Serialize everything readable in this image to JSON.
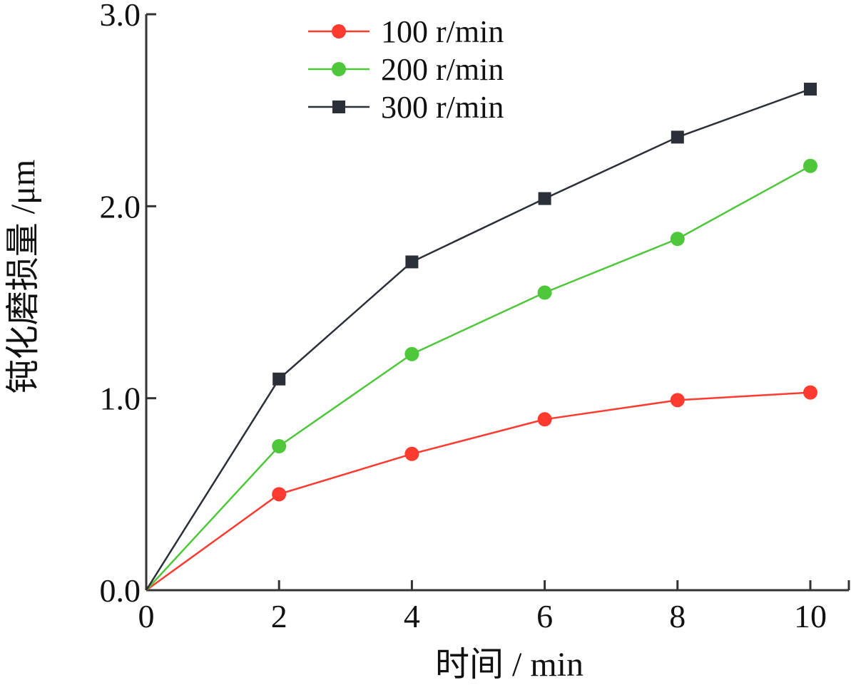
{
  "chart_data": {
    "type": "line",
    "xlabel": "时间 / min",
    "ylabel": "钝化磨损量 /μm",
    "x": [
      0,
      2,
      4,
      6,
      8,
      10
    ],
    "xlim": [
      0,
      10
    ],
    "ylim": [
      0,
      3.0
    ],
    "x_ticks": [
      "0",
      "2",
      "4",
      "6",
      "8",
      "10"
    ],
    "y_ticks": [
      "0.0",
      "1.0",
      "2.0",
      "3.0"
    ],
    "grid": false,
    "legend_position": "top-center",
    "series": [
      {
        "name": "100 r/min",
        "marker": "circle",
        "color": "#ff3b30",
        "values": [
          0,
          0.5,
          0.71,
          0.89,
          0.99,
          1.03
        ]
      },
      {
        "name": "200 r/min",
        "marker": "circle",
        "color": "#4ec83a",
        "values": [
          0,
          0.75,
          1.23,
          1.55,
          1.83,
          2.21
        ]
      },
      {
        "name": "300 r/min",
        "marker": "square",
        "color": "#2b2f38",
        "values": [
          0,
          1.1,
          1.71,
          2.04,
          2.36,
          2.61
        ]
      }
    ]
  }
}
